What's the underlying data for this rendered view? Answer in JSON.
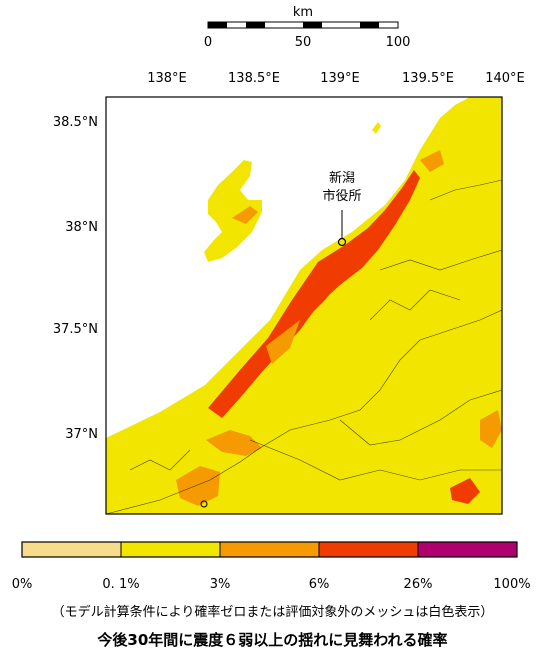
{
  "scale_bar": {
    "unit": "km",
    "ticks": [
      "0",
      "50",
      "100"
    ]
  },
  "lon_labels": [
    "138°E",
    "138.5°E",
    "139°E",
    "139.5°E",
    "140°E"
  ],
  "lat_labels": [
    "38.5°N",
    "38°N",
    "37.5°N",
    "37°N"
  ],
  "city_label": {
    "line1": "新潟",
    "line2": "市役所"
  },
  "legend": {
    "colors": [
      "#f7dc8c",
      "#f2e600",
      "#f59a00",
      "#f03c00",
      "#b00070"
    ],
    "labels": [
      "0%",
      "0. 1%",
      "3%",
      "6%",
      "26%",
      "100%"
    ]
  },
  "footer": {
    "note": "（モデル計算条件により確率ゼロまたは評価対象外のメッシュは白色表示）",
    "title": "今後30年間に震度６弱以上の揺れに見舞われる確率"
  }
}
